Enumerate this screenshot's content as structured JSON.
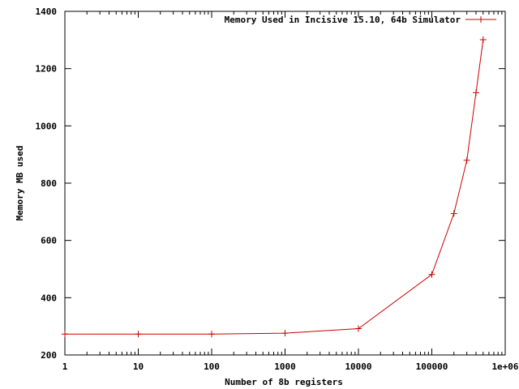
{
  "chart_data": {
    "type": "line",
    "title": "",
    "xlabel": "Number of 8b  registers",
    "ylabel": "Memory MB used",
    "x_scale": "log",
    "xlim": [
      1,
      1000000
    ],
    "ylim": [
      200,
      1400
    ],
    "grid": false,
    "legend_position": "top-right",
    "x_tick_labels": [
      "1",
      "10",
      "100",
      "1000",
      "10000",
      "100000",
      "1e+06"
    ],
    "y_tick_labels": [
      "200",
      "400",
      "600",
      "800",
      "1000",
      "1200",
      "1400"
    ],
    "series": [
      {
        "name": "Memory Used in Incisive 15.10, 64b Simulator",
        "color": "#cc0000",
        "marker": "plus",
        "x": [
          1,
          10,
          100,
          1000,
          10000,
          100000,
          200000,
          300000,
          400000,
          500000
        ],
        "y": [
          273,
          273,
          273,
          276,
          292,
          481,
          694,
          880,
          1116,
          1301
        ]
      }
    ]
  }
}
